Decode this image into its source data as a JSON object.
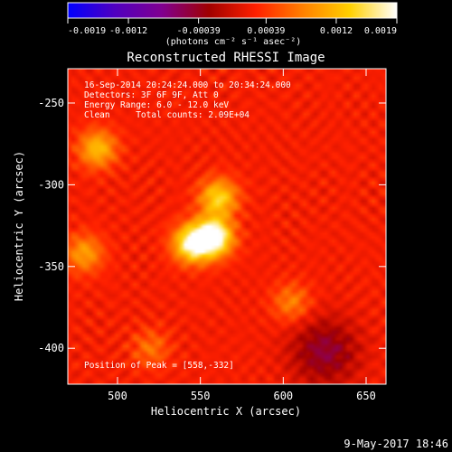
{
  "colorbar": {
    "ticks": [
      "-0.0019",
      "-0.0012",
      "-0.00039",
      "0.00039",
      "0.0012",
      "0.0019"
    ],
    "tick_values": [
      -0.0019,
      -0.0012,
      -0.00039,
      0.00039,
      0.0012,
      0.0019
    ],
    "range": [
      -0.0019,
      0.0019
    ],
    "units_label": "(photons cm⁻² s⁻¹ asec⁻²)",
    "colors": [
      "#0000ff",
      "#5000c0",
      "#800090",
      "#a00000",
      "#ff2000",
      "#ff8000",
      "#ffd000",
      "#ffffff"
    ]
  },
  "chart_data": {
    "type": "heatmap",
    "title": "Reconstructed RHESSI Image",
    "xlabel": "Heliocentric X (arcsec)",
    "ylabel": "Heliocentric Y (arcsec)",
    "xlim": [
      470,
      662
    ],
    "ylim": [
      -422,
      -229
    ],
    "x_ticks": [
      500,
      550,
      600,
      650
    ],
    "y_ticks": [
      -250,
      -300,
      -350,
      -400
    ],
    "annotations": [
      "16-Sep-2014 20:24:24.000 to 20:34:24.000",
      "Detectors: 3F 6F 9F, Att 0",
      "Energy Range: 6.0 - 12.0 keV",
      "Clean     Total counts: 2.09E+04"
    ],
    "peak_label": "Position of Peak = [558,-332]",
    "peak": [
      558,
      -332
    ],
    "sources": [
      {
        "x": 558,
        "y": -332,
        "intensity": 0.0019
      },
      {
        "x": 545,
        "y": -336,
        "intensity": 0.0016
      },
      {
        "x": 561,
        "y": -308,
        "intensity": 0.0012
      },
      {
        "x": 488,
        "y": -278,
        "intensity": 0.001
      },
      {
        "x": 480,
        "y": -342,
        "intensity": 0.0008
      },
      {
        "x": 605,
        "y": -372,
        "intensity": 0.0006
      },
      {
        "x": 520,
        "y": -400,
        "intensity": 0.0005
      }
    ],
    "dark_region": {
      "x": 625,
      "y": -402
    }
  },
  "footer": {
    "date": "9-May-2017 18:46"
  }
}
